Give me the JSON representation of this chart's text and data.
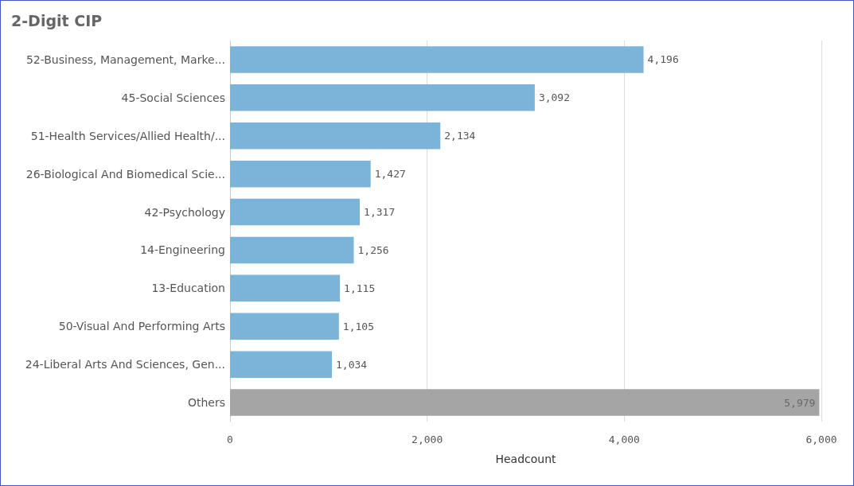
{
  "chart_data": {
    "type": "bar",
    "orientation": "horizontal",
    "title": "2-Digit CIP",
    "xlabel": "Headcount",
    "categories": [
      "52-Business, Management, Marke...",
      "45-Social Sciences",
      "51-Health Services/Allied Health/...",
      "26-Biological And Biomedical Scie...",
      "42-Psychology",
      "14-Engineering",
      "13-Education",
      "50-Visual And Performing Arts",
      "24-Liberal Arts And Sciences, Gen...",
      "Others"
    ],
    "values": [
      4196,
      3092,
      2134,
      1427,
      1317,
      1256,
      1115,
      1105,
      1034,
      5979
    ],
    "colors": [
      "#7ab5d9",
      "#7ab5d9",
      "#7ab5d9",
      "#7ab5d9",
      "#7ab5d9",
      "#7ab5d9",
      "#7ab5d9",
      "#7ab5d9",
      "#7ab5d9",
      "#a5a5a5"
    ],
    "value_labels": [
      "4,196",
      "3,092",
      "2,134",
      "1,427",
      "1,317",
      "1,256",
      "1,115",
      "1,105",
      "1,034",
      "5,979"
    ],
    "xlim": [
      0,
      6000
    ],
    "xticks": [
      {
        "value": 0,
        "label": "0"
      },
      {
        "value": 2000,
        "label": "2,000"
      },
      {
        "value": 4000,
        "label": "4,000"
      },
      {
        "value": 6000,
        "label": "6,000"
      }
    ],
    "grid": "x"
  }
}
